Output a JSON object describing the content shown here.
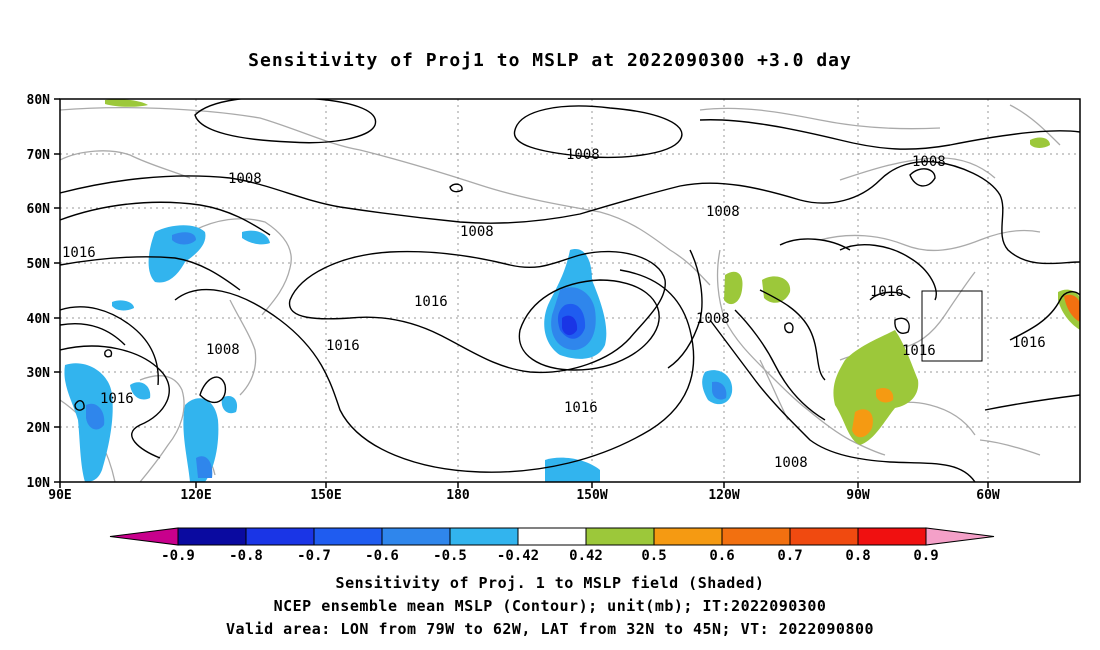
{
  "title": "Sensitivity of Proj1 to MSLP at 2022090300 +3.0 day",
  "lat_ticks": [
    "80N",
    "70N",
    "60N",
    "50N",
    "40N",
    "30N",
    "20N",
    "10N"
  ],
  "lon_ticks": [
    "90E",
    "120E",
    "150E",
    "180",
    "150W",
    "120W",
    "90W",
    "60W"
  ],
  "contour_labels": [
    "1008",
    "1008",
    "1008",
    "1008",
    "1008",
    "1008",
    "1016",
    "1016",
    "1016",
    "1016",
    "1016",
    "1016",
    "1016",
    "1008",
    "1016"
  ],
  "colorbar": {
    "labels": [
      "-0.9",
      "-0.8",
      "-0.7",
      "-0.6",
      "-0.5",
      "-0.42",
      "0.42",
      "0.5",
      "0.6",
      "0.7",
      "0.8",
      "0.9"
    ],
    "colors": [
      "#0a0aa0",
      "#1a35e6",
      "#1f5cf0",
      "#2f86ec",
      "#32b4ee",
      "#ffffff",
      "#9cc83a",
      "#f59a12",
      "#f27010",
      "#f04a10",
      "#f01010"
    ],
    "low_arrow_color": "#c8008c",
    "high_arrow_color": "#f4a0c8"
  },
  "captions": [
    "Sensitivity of Proj. 1 to MSLP field (Shaded)",
    "NCEP ensemble mean MSLP (Contour); unit(mb); IT:2022090300",
    "Valid area: LON from 79W to 62W, LAT from 32N to 45N; VT: 2022090800"
  ]
}
